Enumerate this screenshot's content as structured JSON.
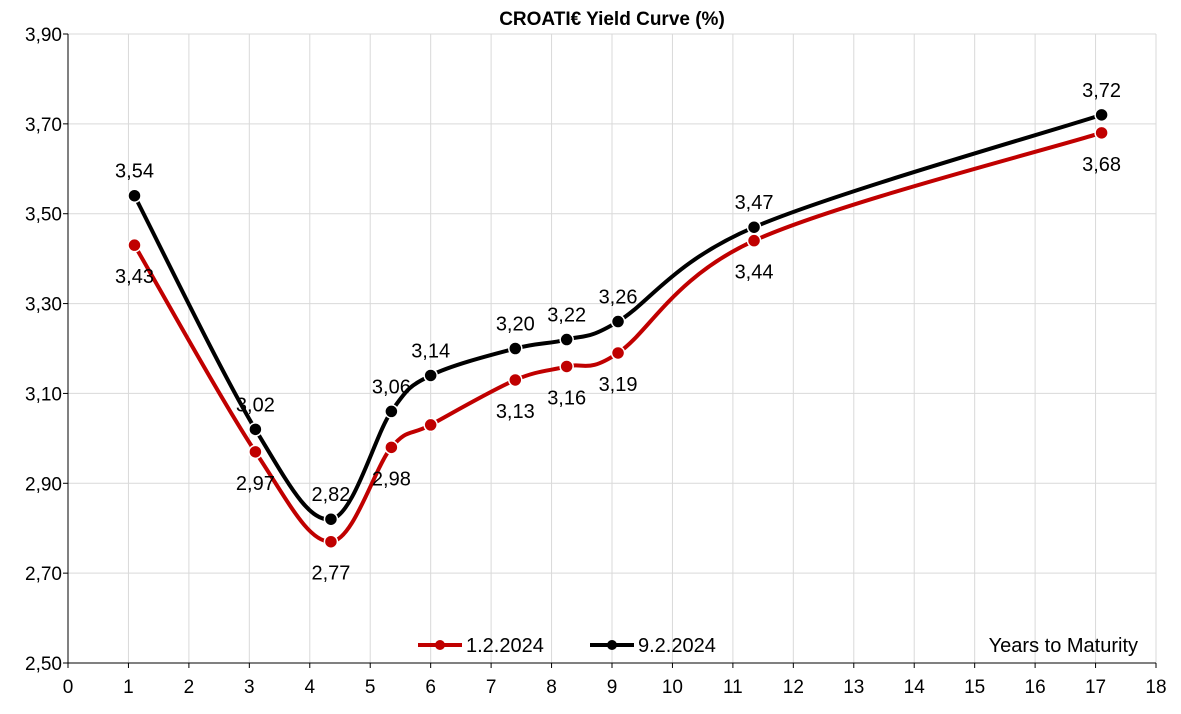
{
  "chart_data": {
    "type": "line",
    "title": "CROATI€ Yield Curve (%)",
    "xlabel": "Years to Maturity",
    "ylabel": "",
    "xlim": [
      0,
      18
    ],
    "ylim": [
      2.5,
      3.9
    ],
    "x_ticks": [
      0,
      1,
      2,
      3,
      4,
      5,
      6,
      7,
      8,
      9,
      10,
      11,
      12,
      13,
      14,
      15,
      16,
      17,
      18
    ],
    "y_ticks": [
      2.5,
      2.7,
      2.9,
      3.1,
      3.3,
      3.5,
      3.7,
      3.9
    ],
    "y_tick_labels": [
      "2,50",
      "2,70",
      "2,90",
      "3,10",
      "3,30",
      "3,50",
      "3,70",
      "3,90"
    ],
    "grid": true,
    "legend": "bottom-center",
    "series": [
      {
        "name": "1.2.2024",
        "color": "#c00000",
        "x": [
          1.1,
          3.1,
          4.35,
          5.35,
          6.0,
          7.4,
          8.25,
          9.1,
          11.35,
          17.1
        ],
        "values": [
          3.43,
          2.97,
          2.77,
          2.98,
          3.03,
          3.13,
          3.16,
          3.19,
          3.44,
          3.68
        ],
        "labels": [
          "3,43",
          "2,97",
          "2,77",
          "2,98",
          "",
          "3,13",
          "3,16",
          "3,19",
          "3,44",
          "3,68"
        ],
        "label_pos": [
          "below",
          "below",
          "below",
          "below",
          "none",
          "below",
          "below",
          "below",
          "below",
          "below"
        ]
      },
      {
        "name": "9.2.2024",
        "color": "#000000",
        "x": [
          1.1,
          3.1,
          4.35,
          5.35,
          6.0,
          7.4,
          8.25,
          9.1,
          11.35,
          17.1
        ],
        "values": [
          3.54,
          3.02,
          2.82,
          3.06,
          3.14,
          3.2,
          3.22,
          3.26,
          3.47,
          3.72
        ],
        "labels": [
          "3,54",
          "3,02",
          "2,82",
          "3,06",
          "3,14",
          "3,20",
          "3,22",
          "3,26",
          "3,47",
          "3,72"
        ],
        "label_pos": [
          "above",
          "above",
          "above",
          "above",
          "above",
          "above",
          "above",
          "above",
          "above",
          "above"
        ]
      }
    ]
  }
}
